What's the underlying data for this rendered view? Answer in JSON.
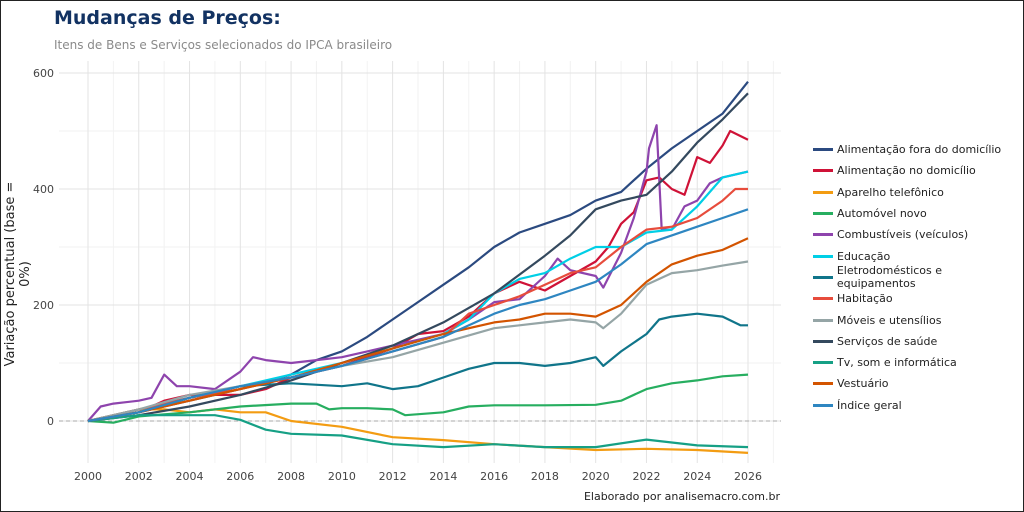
{
  "chart_data": {
    "type": "line",
    "title": "Mudanças de Preços:",
    "subtitle": "Itens de Bens e Serviços selecionados do IPCA brasileiro",
    "ylabel": "Variação percentual (base  = 0%)",
    "xlabel": "",
    "caption": "Elaborado por analisemacro.com.br",
    "xlim": [
      2000,
      2026
    ],
    "ylim": [
      -70,
      620
    ],
    "xticks": [
      2000,
      2002,
      2004,
      2006,
      2008,
      2010,
      2012,
      2014,
      2016,
      2018,
      2020,
      2022,
      2024,
      2026
    ],
    "yticks": [
      0,
      200,
      400,
      600
    ],
    "grid": true,
    "zero_line": "dashed",
    "legend_position": "right",
    "series": [
      {
        "name": "Alimentação fora do domicílio",
        "color": "#2b4a80",
        "points": [
          [
            2000,
            0
          ],
          [
            2002,
            15
          ],
          [
            2004,
            35
          ],
          [
            2006,
            55
          ],
          [
            2008,
            80
          ],
          [
            2009,
            105
          ],
          [
            2010,
            120
          ],
          [
            2011,
            145
          ],
          [
            2012,
            175
          ],
          [
            2013,
            205
          ],
          [
            2014,
            235
          ],
          [
            2015,
            265
          ],
          [
            2016,
            300
          ],
          [
            2017,
            325
          ],
          [
            2018,
            340
          ],
          [
            2019,
            355
          ],
          [
            2020,
            380
          ],
          [
            2021,
            395
          ],
          [
            2022,
            435
          ],
          [
            2023,
            470
          ],
          [
            2024,
            500
          ],
          [
            2025,
            530
          ],
          [
            2026,
            585
          ]
        ]
      },
      {
        "name": "Alimentação no domicílio",
        "color": "#cf1237",
        "points": [
          [
            2000,
            0
          ],
          [
            2002,
            15
          ],
          [
            2003,
            35
          ],
          [
            2004,
            45
          ],
          [
            2006,
            45
          ],
          [
            2007,
            55
          ],
          [
            2008,
            75
          ],
          [
            2009,
            85
          ],
          [
            2010,
            95
          ],
          [
            2011,
            110
          ],
          [
            2012,
            125
          ],
          [
            2013,
            150
          ],
          [
            2014,
            155
          ],
          [
            2015,
            180
          ],
          [
            2016,
            220
          ],
          [
            2017,
            240
          ],
          [
            2018,
            225
          ],
          [
            2019,
            250
          ],
          [
            2020,
            275
          ],
          [
            2020.5,
            300
          ],
          [
            2021,
            340
          ],
          [
            2021.5,
            360
          ],
          [
            2022,
            415
          ],
          [
            2022.5,
            420
          ],
          [
            2023,
            400
          ],
          [
            2023.5,
            390
          ],
          [
            2024,
            455
          ],
          [
            2024.5,
            445
          ],
          [
            2025,
            475
          ],
          [
            2025.3,
            500
          ],
          [
            2026,
            485
          ]
        ]
      },
      {
        "name": "Aparelho telefônico",
        "color": "#f39c12",
        "points": [
          [
            2000,
            0
          ],
          [
            2002,
            20
          ],
          [
            2003,
            20
          ],
          [
            2004,
            15
          ],
          [
            2005,
            20
          ],
          [
            2006,
            15
          ],
          [
            2007,
            15
          ],
          [
            2008,
            0
          ],
          [
            2010,
            -10
          ],
          [
            2012,
            -28
          ],
          [
            2014,
            -33
          ],
          [
            2016,
            -40
          ],
          [
            2018,
            -45
          ],
          [
            2020,
            -50
          ],
          [
            2022,
            -48
          ],
          [
            2024,
            -50
          ],
          [
            2026,
            -55
          ]
        ]
      },
      {
        "name": "Automóvel novo",
        "color": "#27ae60",
        "points": [
          [
            2000,
            0
          ],
          [
            2001,
            -3
          ],
          [
            2002,
            8
          ],
          [
            2004,
            15
          ],
          [
            2006,
            25
          ],
          [
            2008,
            30
          ],
          [
            2009,
            30
          ],
          [
            2009.5,
            20
          ],
          [
            2010,
            22
          ],
          [
            2011,
            22
          ],
          [
            2012,
            20
          ],
          [
            2012.5,
            10
          ],
          [
            2014,
            15
          ],
          [
            2015,
            25
          ],
          [
            2016,
            27
          ],
          [
            2018,
            27
          ],
          [
            2020,
            28
          ],
          [
            2021,
            35
          ],
          [
            2022,
            55
          ],
          [
            2023,
            65
          ],
          [
            2024,
            70
          ],
          [
            2025,
            77
          ],
          [
            2026,
            80
          ]
        ]
      },
      {
        "name": "Combustíveis (veículos)",
        "color": "#8e44ad",
        "points": [
          [
            2000,
            0
          ],
          [
            2000.5,
            25
          ],
          [
            2001,
            30
          ],
          [
            2002,
            35
          ],
          [
            2002.5,
            40
          ],
          [
            2003,
            80
          ],
          [
            2003.5,
            60
          ],
          [
            2004,
            60
          ],
          [
            2005,
            55
          ],
          [
            2006,
            85
          ],
          [
            2006.5,
            110
          ],
          [
            2007,
            105
          ],
          [
            2008,
            100
          ],
          [
            2009,
            105
          ],
          [
            2010,
            110
          ],
          [
            2011,
            120
          ],
          [
            2012,
            130
          ],
          [
            2013,
            140
          ],
          [
            2014,
            150
          ],
          [
            2015,
            175
          ],
          [
            2016,
            205
          ],
          [
            2017,
            210
          ],
          [
            2018,
            250
          ],
          [
            2018.5,
            280
          ],
          [
            2019,
            260
          ],
          [
            2020,
            250
          ],
          [
            2020.3,
            230
          ],
          [
            2021,
            290
          ],
          [
            2021.5,
            350
          ],
          [
            2022,
            430
          ],
          [
            2022.1,
            470
          ],
          [
            2022.4,
            510
          ],
          [
            2022.6,
            330
          ],
          [
            2023,
            330
          ],
          [
            2023.5,
            370
          ],
          [
            2024,
            380
          ],
          [
            2024.5,
            410
          ],
          [
            2025,
            420
          ],
          [
            2026,
            430
          ]
        ]
      },
      {
        "name": "Educação",
        "color": "#00cfe6",
        "points": [
          [
            2000,
            0
          ],
          [
            2004,
            40
          ],
          [
            2006,
            60
          ],
          [
            2008,
            80
          ],
          [
            2010,
            100
          ],
          [
            2012,
            125
          ],
          [
            2014,
            150
          ],
          [
            2015,
            175
          ],
          [
            2016,
            220
          ],
          [
            2017,
            245
          ],
          [
            2018,
            255
          ],
          [
            2019,
            280
          ],
          [
            2020,
            300
          ],
          [
            2021,
            300
          ],
          [
            2022,
            325
          ],
          [
            2023,
            330
          ],
          [
            2024,
            370
          ],
          [
            2025,
            420
          ],
          [
            2026,
            430
          ]
        ]
      },
      {
        "name": "Eletrodomésticos e equipamentos",
        "color": "#10758a",
        "points": [
          [
            2000,
            0
          ],
          [
            2002,
            15
          ],
          [
            2004,
            40
          ],
          [
            2006,
            60
          ],
          [
            2008,
            65
          ],
          [
            2010,
            60
          ],
          [
            2011,
            65
          ],
          [
            2012,
            55
          ],
          [
            2013,
            60
          ],
          [
            2014,
            75
          ],
          [
            2015,
            90
          ],
          [
            2016,
            100
          ],
          [
            2017,
            100
          ],
          [
            2018,
            95
          ],
          [
            2019,
            100
          ],
          [
            2020,
            110
          ],
          [
            2020.3,
            95
          ],
          [
            2021,
            120
          ],
          [
            2022,
            150
          ],
          [
            2022.5,
            175
          ],
          [
            2023,
            180
          ],
          [
            2024,
            185
          ],
          [
            2025,
            180
          ],
          [
            2025.7,
            165
          ],
          [
            2026,
            165
          ]
        ]
      },
      {
        "name": "Habitação",
        "color": "#e74c3c",
        "points": [
          [
            2000,
            0
          ],
          [
            2004,
            40
          ],
          [
            2006,
            55
          ],
          [
            2008,
            75
          ],
          [
            2010,
            95
          ],
          [
            2012,
            120
          ],
          [
            2014,
            145
          ],
          [
            2015,
            185
          ],
          [
            2016,
            200
          ],
          [
            2017,
            215
          ],
          [
            2018,
            235
          ],
          [
            2019,
            255
          ],
          [
            2020,
            265
          ],
          [
            2021,
            300
          ],
          [
            2022,
            330
          ],
          [
            2023,
            335
          ],
          [
            2024,
            350
          ],
          [
            2025,
            380
          ],
          [
            2025.5,
            400
          ],
          [
            2026,
            400
          ]
        ]
      },
      {
        "name": "Móveis e utensílios",
        "color": "#95a5a6",
        "points": [
          [
            2000,
            0
          ],
          [
            2002,
            20
          ],
          [
            2004,
            45
          ],
          [
            2006,
            60
          ],
          [
            2008,
            75
          ],
          [
            2010,
            95
          ],
          [
            2012,
            110
          ],
          [
            2014,
            135
          ],
          [
            2016,
            160
          ],
          [
            2017,
            165
          ],
          [
            2018,
            170
          ],
          [
            2019,
            175
          ],
          [
            2020,
            170
          ],
          [
            2020.3,
            160
          ],
          [
            2021,
            185
          ],
          [
            2022,
            235
          ],
          [
            2023,
            255
          ],
          [
            2024,
            260
          ],
          [
            2025,
            268
          ],
          [
            2026,
            275
          ]
        ]
      },
      {
        "name": "Serviços de saúde",
        "color": "#34495e",
        "points": [
          [
            2000,
            0
          ],
          [
            2002,
            10
          ],
          [
            2004,
            25
          ],
          [
            2006,
            45
          ],
          [
            2008,
            70
          ],
          [
            2010,
            100
          ],
          [
            2012,
            130
          ],
          [
            2014,
            170
          ],
          [
            2016,
            220
          ],
          [
            2018,
            285
          ],
          [
            2019,
            320
          ],
          [
            2020,
            365
          ],
          [
            2021,
            380
          ],
          [
            2022,
            390
          ],
          [
            2023,
            430
          ],
          [
            2024,
            480
          ],
          [
            2025,
            520
          ],
          [
            2026,
            565
          ]
        ]
      },
      {
        "name": "Tv, som e informática",
        "color": "#16a085",
        "points": [
          [
            2000,
            0
          ],
          [
            2002,
            10
          ],
          [
            2004,
            10
          ],
          [
            2005,
            10
          ],
          [
            2006,
            2
          ],
          [
            2007,
            -15
          ],
          [
            2008,
            -22
          ],
          [
            2010,
            -25
          ],
          [
            2012,
            -40
          ],
          [
            2014,
            -45
          ],
          [
            2016,
            -40
          ],
          [
            2018,
            -45
          ],
          [
            2020,
            -45
          ],
          [
            2022,
            -32
          ],
          [
            2024,
            -42
          ],
          [
            2026,
            -45
          ]
        ]
      },
      {
        "name": "Vestuário",
        "color": "#d35400",
        "points": [
          [
            2000,
            0
          ],
          [
            2002,
            15
          ],
          [
            2004,
            35
          ],
          [
            2006,
            55
          ],
          [
            2008,
            75
          ],
          [
            2010,
            100
          ],
          [
            2012,
            125
          ],
          [
            2014,
            150
          ],
          [
            2016,
            170
          ],
          [
            2017,
            175
          ],
          [
            2018,
            185
          ],
          [
            2019,
            185
          ],
          [
            2020,
            180
          ],
          [
            2021,
            200
          ],
          [
            2022,
            240
          ],
          [
            2023,
            270
          ],
          [
            2024,
            285
          ],
          [
            2025,
            295
          ],
          [
            2026,
            315
          ]
        ]
      },
      {
        "name": "Índice geral",
        "color": "#2e86c1",
        "points": [
          [
            2000,
            0
          ],
          [
            2002,
            15
          ],
          [
            2004,
            40
          ],
          [
            2006,
            60
          ],
          [
            2008,
            75
          ],
          [
            2010,
            95
          ],
          [
            2012,
            120
          ],
          [
            2014,
            145
          ],
          [
            2016,
            185
          ],
          [
            2017,
            200
          ],
          [
            2018,
            210
          ],
          [
            2019,
            225
          ],
          [
            2020,
            240
          ],
          [
            2021,
            270
          ],
          [
            2022,
            305
          ],
          [
            2023,
            320
          ],
          [
            2024,
            335
          ],
          [
            2025,
            350
          ],
          [
            2026,
            365
          ]
        ]
      }
    ]
  }
}
